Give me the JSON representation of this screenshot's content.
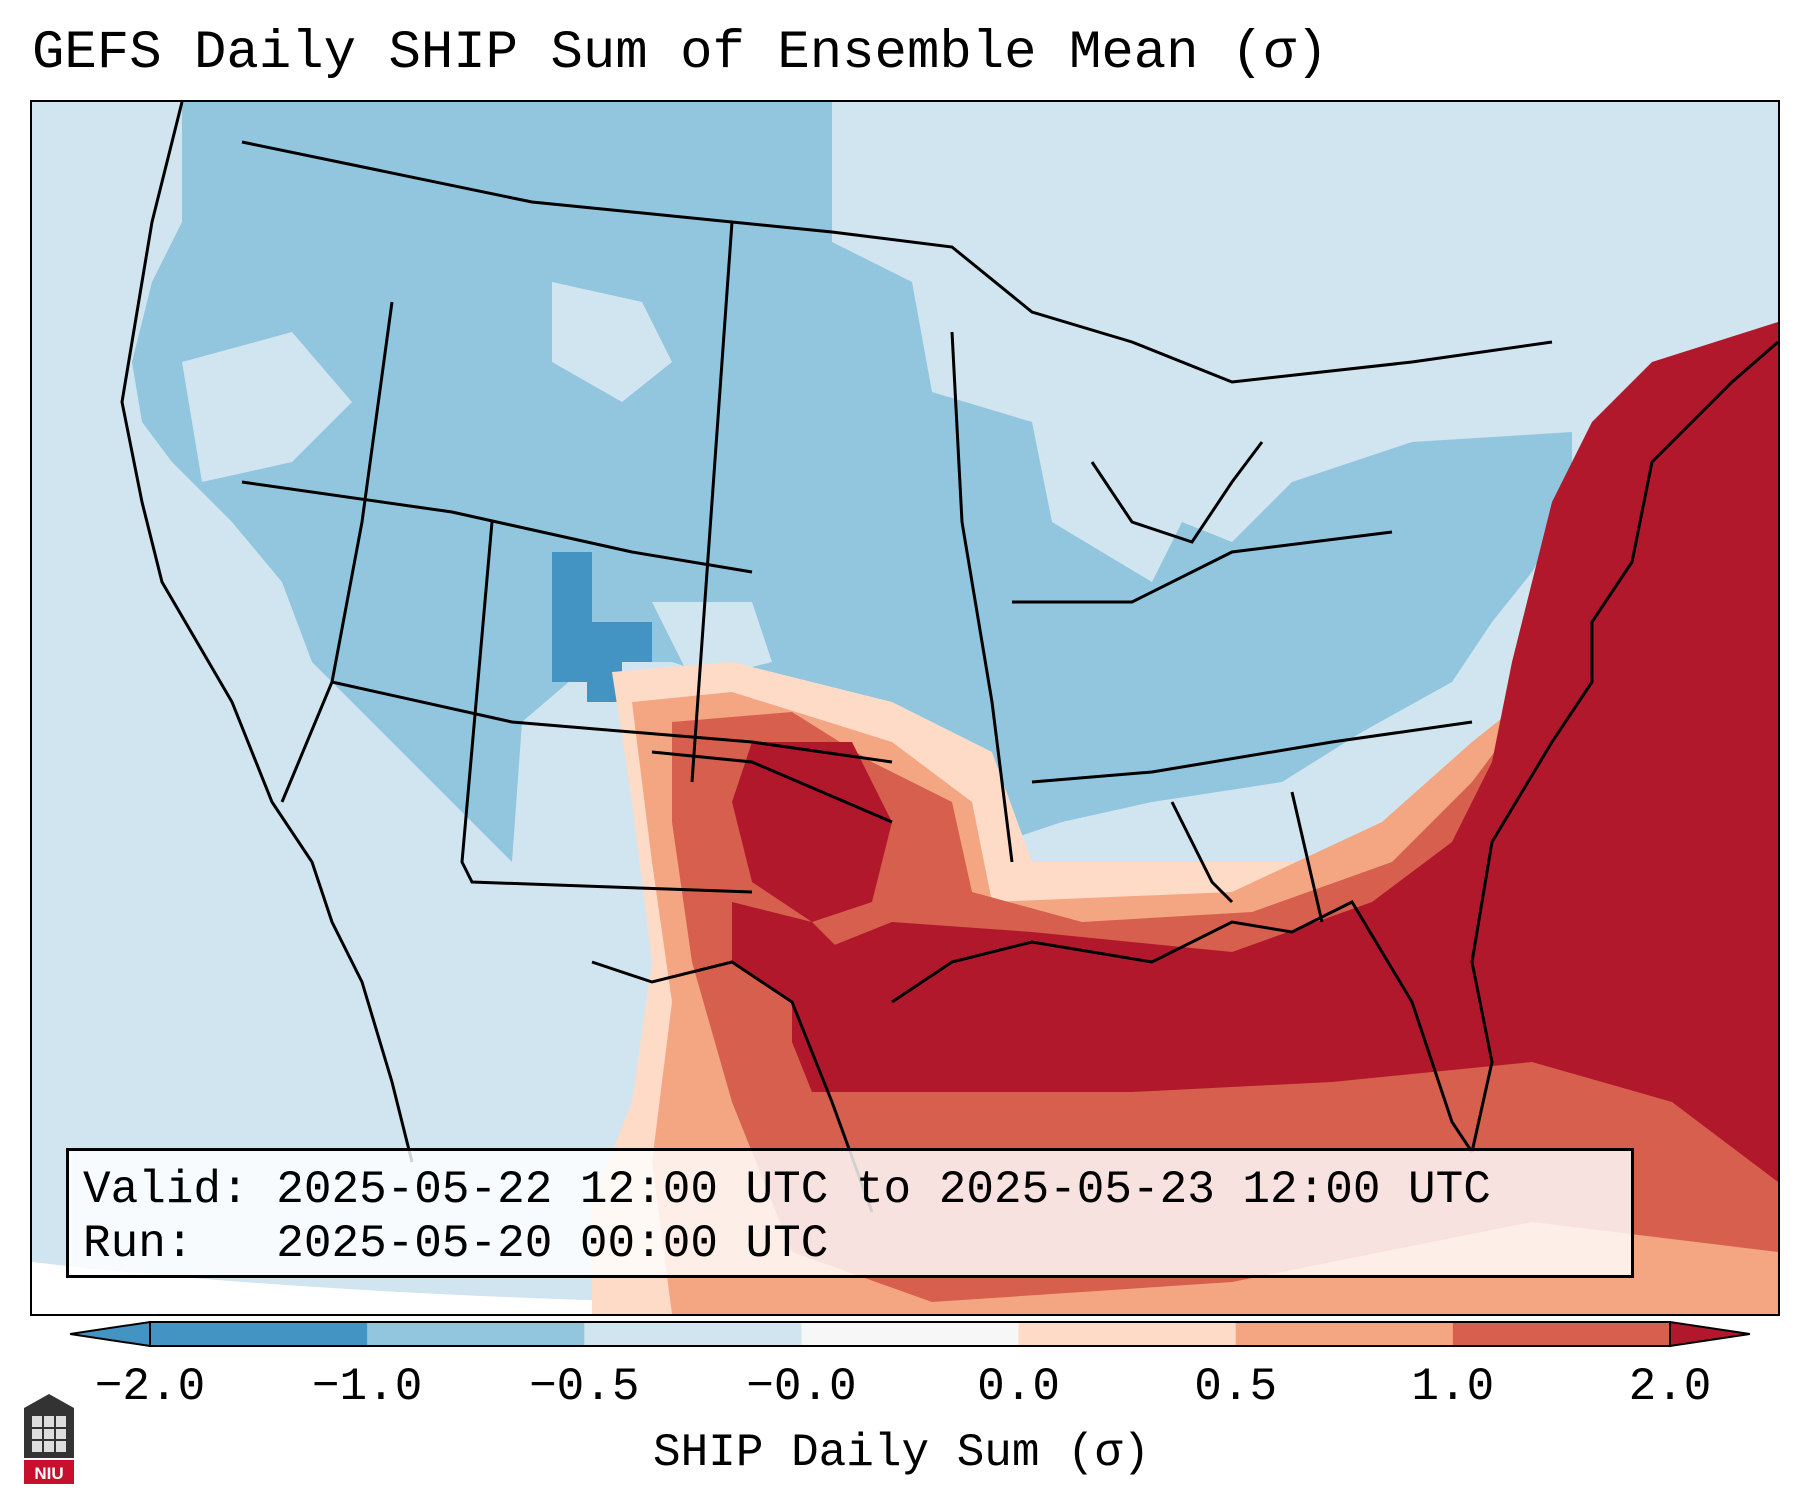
{
  "title": "GEFS Daily SHIP Sum of Ensemble Mean (σ)",
  "info": {
    "valid_label": "Valid:",
    "valid_text": "2025-05-22 12:00 UTC to 2025-05-23 12:00 UTC",
    "run_label": "Run:",
    "run_text": "2025-05-20 00:00 UTC"
  },
  "colorbar": {
    "label": "SHIP Daily Sum (σ)",
    "ticks": [
      "−2.0",
      "−1.0",
      "−0.5",
      "−0.0",
      "0.0",
      "0.5",
      "1.0",
      "2.0"
    ],
    "colors": [
      "#4393c3",
      "#92c5de",
      "#d1e5f0",
      "#f7f7f7",
      "#fddbc7",
      "#f4a582",
      "#d6604d",
      "#b2182b"
    ],
    "extend": "both"
  },
  "map": {
    "projection": "Lambert Conformal, CONUS",
    "colors": {
      "ocean_background": "#d1e5f0",
      "strong_negative": "#4393c3",
      "moderate_negative": "#92c5de",
      "neutral": "#f7f7f7",
      "weak_positive": "#fddbc7",
      "moderate_positive": "#f4a582",
      "high_positive": "#d6604d",
      "very_high_positive": "#b2182b"
    }
  },
  "logo": {
    "text": "NIU"
  }
}
